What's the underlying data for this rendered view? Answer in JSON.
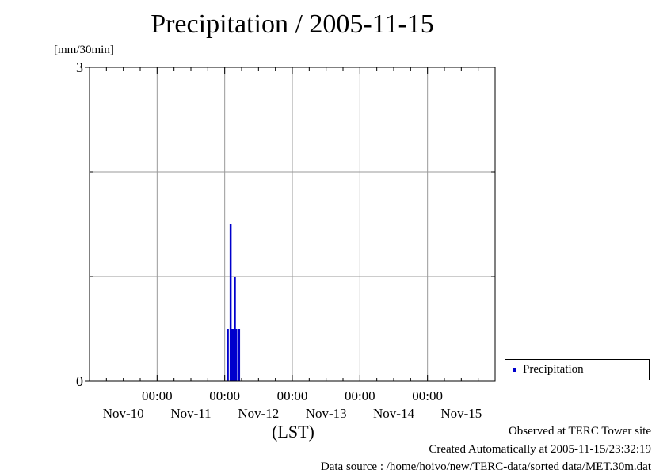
{
  "chart_data": {
    "type": "bar",
    "title": "Precipitation / 2005-11-15",
    "ylabel": "[mm/30min]",
    "xlabel": "(LST)",
    "ylim": [
      0,
      3
    ],
    "y_tick_labels": [
      "0",
      "3"
    ],
    "x_tick_labels": [
      {
        "time": "00:00",
        "date": "Nov-11"
      },
      {
        "time": "00:00",
        "date": "Nov-12"
      },
      {
        "time": "00:00",
        "date": "Nov-13"
      },
      {
        "time": "00:00",
        "date": "Nov-14"
      },
      {
        "time": "00:00",
        "date": "Nov-15"
      }
    ],
    "extra_date_labels": [
      "Nov-10"
    ],
    "x_range_days": [
      "2005-11-10T00:00",
      "2005-11-16T00:00"
    ],
    "grid": true,
    "legend_position": "right",
    "series": [
      {
        "name": "Precipitation",
        "color": "#0000cc",
        "points": [
          {
            "x": "2005-11-12T01:00",
            "y": 0.5
          },
          {
            "x": "2005-11-12T02:00",
            "y": 1.5
          },
          {
            "x": "2005-11-12T02:30",
            "y": 0.5
          },
          {
            "x": "2005-11-12T03:00",
            "y": 0.5
          },
          {
            "x": "2005-11-12T03:30",
            "y": 1.0
          },
          {
            "x": "2005-11-12T04:00",
            "y": 0.5
          },
          {
            "x": "2005-11-12T05:00",
            "y": 0.5
          }
        ]
      }
    ]
  },
  "footer": {
    "line1": "Observed at TERC Tower site",
    "line2": "Created Automatically at 2005-11-15/23:32:19",
    "line3": "Data source : /home/hoivo/new/TERC-data/sorted  data/MET.30m.dat"
  }
}
